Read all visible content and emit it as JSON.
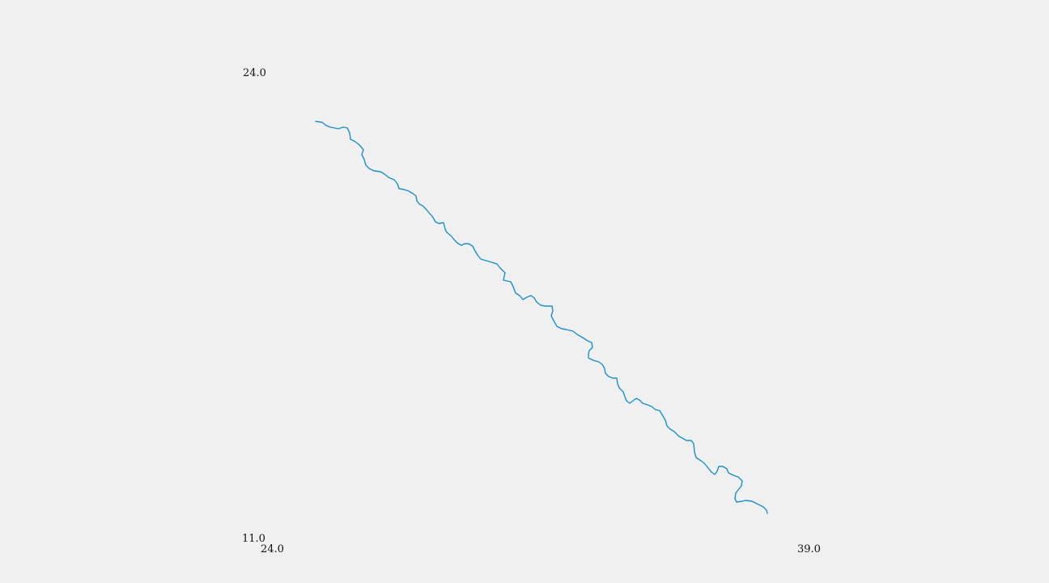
{
  "axes": {
    "x_min_label": "24.0",
    "x_max_label": "39.0",
    "y_min_label": "11.0",
    "y_max_label": "24.0"
  },
  "river": {
    "color": "#1a8fcf"
  }
}
